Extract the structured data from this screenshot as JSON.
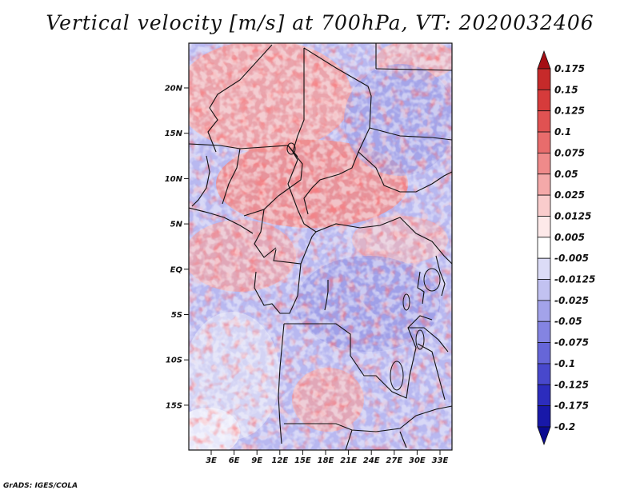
{
  "title": "Vertical velocity [m/s] at 700hPa, VT: 2020032406",
  "credit": "GrADS: IGES/COLA",
  "map": {
    "lat_labels": [
      "20N",
      "15N",
      "10N",
      "5N",
      "EQ",
      "5S",
      "10S",
      "15S"
    ],
    "lon_labels": [
      "3E",
      "6E",
      "9E",
      "12E",
      "15E",
      "18E",
      "21E",
      "24E",
      "27E",
      "30E",
      "33E"
    ]
  },
  "colorbar": {
    "labels": [
      "0.175",
      "0.15",
      "0.125",
      "0.1",
      "0.075",
      "0.05",
      "0.025",
      "0.0125",
      "0.005",
      "-0.005",
      "-0.0125",
      "-0.025",
      "-0.05",
      "-0.075",
      "-0.1",
      "-0.125",
      "-0.175",
      "-0.2"
    ],
    "colors": [
      "#a50f15",
      "#c62a2a",
      "#d63b3b",
      "#e05252",
      "#e86c6c",
      "#ef8a8a",
      "#f4a9a9",
      "#f9cccc",
      "#fde9e9",
      "#ffffff",
      "#dcdcf7",
      "#c2c2f1",
      "#a3a3ea",
      "#8484e2",
      "#6666d8",
      "#4848cc",
      "#2c2cbd",
      "#1818a8",
      "#0a0a90"
    ]
  }
}
